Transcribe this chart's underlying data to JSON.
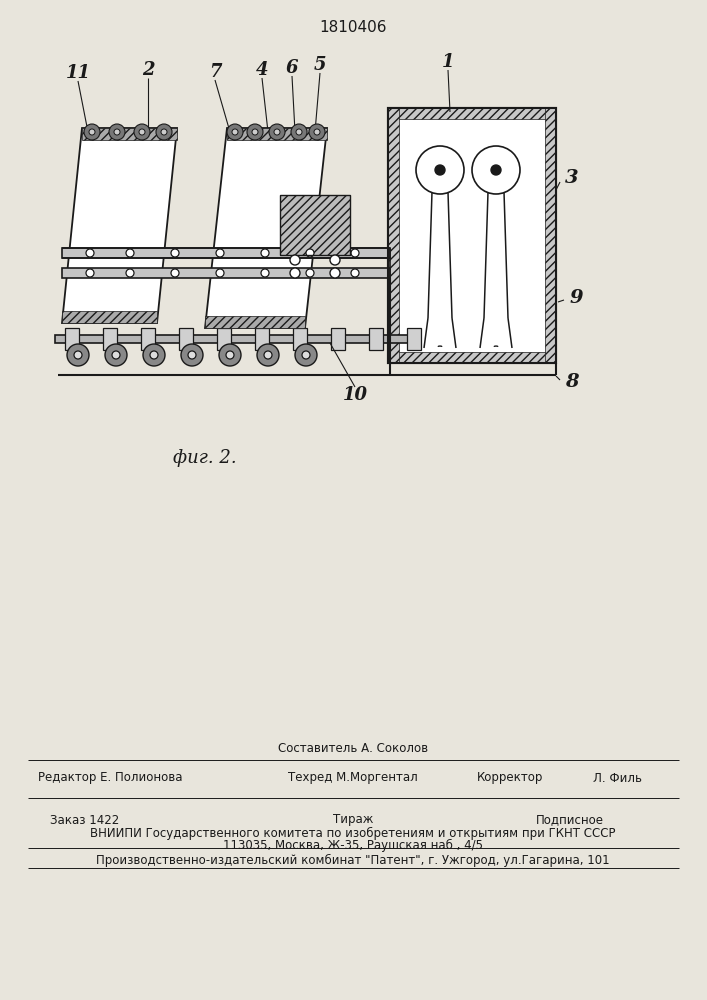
{
  "title": "1810406",
  "fig_label": "фиг. 2.",
  "bg_color": "#e8e5dc",
  "line_color": "#1a1a1a",
  "footer_line1_left": "Редактор Е. Полионова",
  "footer_line1_center1": "Составитель А. Соколов",
  "footer_line1_center2": "Техред М.Моргентал",
  "footer_line1_right_label": "Корректор",
  "footer_line1_right_value": "Л. Филь",
  "footer_line2_left": "Заказ 1422",
  "footer_line2_center": "Тираж",
  "footer_line2_right": "Подписное",
  "footer_line3": "ВНИИПИ Государственного комитета по изобретениям и открытиям при ГКНТ СССР",
  "footer_line4": "113035, Москва, Ж-35, Раушская наб., 4/5",
  "footer_line5": "Производственно-издательский комбинат \"Патент\", г. Ужгород, ул.Гагарина, 101"
}
